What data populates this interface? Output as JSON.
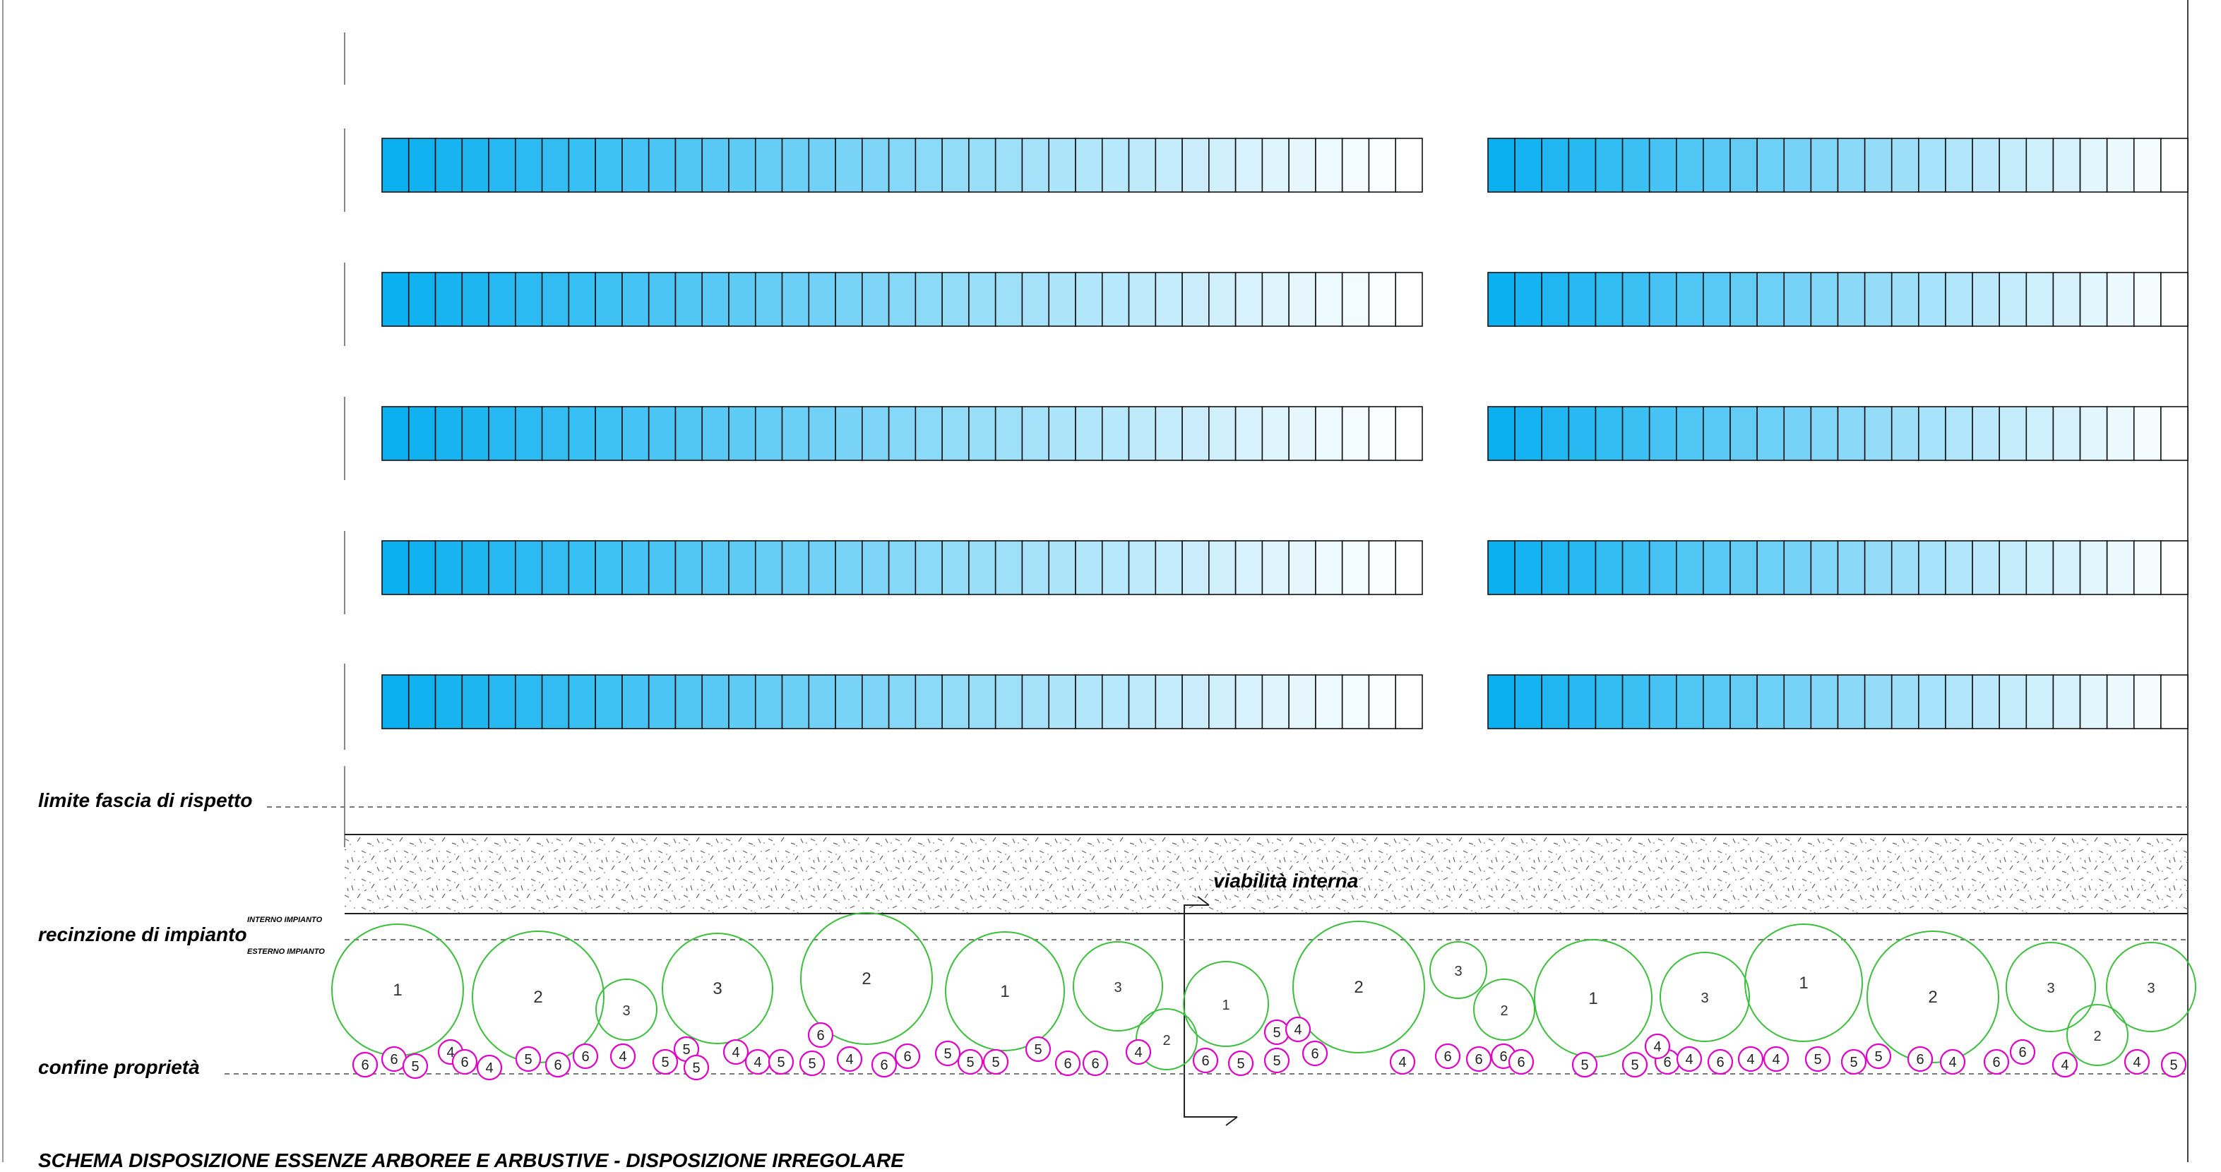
{
  "labels": {
    "limite_fascia": "limite fascia di rispetto",
    "recinzione": "recinzione di impianto",
    "interno": "INTERNO IMPIANTO",
    "esterno": "ESTERNO IMPIANTO",
    "confine": "confine proprietà",
    "viabilita": "viabilità interna",
    "title": "SCHEMA DISPOSIZIONE ESSENZE ARBOREE E ARBUSTIVE - DISPOSIZIONE IRREGOLARE"
  },
  "colors": {
    "panel_start": "#0bb0f0",
    "panel_end": "#ffffff",
    "tree_stroke": "#3cbf3c",
    "shrub_stroke": "#e000c8",
    "line": "#000000",
    "dashed": "#777777"
  },
  "trees": [
    {
      "label": "1"
    },
    {
      "label": "2"
    },
    {
      "label": "3"
    },
    {
      "label": "3"
    },
    {
      "label": "2"
    },
    {
      "label": "1"
    },
    {
      "label": "3"
    },
    {
      "label": "2"
    },
    {
      "label": "1"
    },
    {
      "label": "2"
    },
    {
      "label": "3"
    },
    {
      "label": "2"
    },
    {
      "label": "1"
    },
    {
      "label": "3"
    },
    {
      "label": "1"
    },
    {
      "label": "2"
    },
    {
      "label": "3"
    },
    {
      "label": "2"
    },
    {
      "label": "3"
    }
  ],
  "shrubs": [
    "6",
    "6",
    "5",
    "4",
    "6",
    "4",
    "5",
    "6",
    "6",
    "4",
    "5",
    "5",
    "5",
    "4",
    "4",
    "5",
    "5",
    "6",
    "4",
    "6",
    "6",
    "5",
    "5",
    "5",
    "5",
    "6",
    "6",
    "4",
    "6",
    "5",
    "5",
    "5",
    "4",
    "6",
    "4",
    "6",
    "6",
    "6",
    "6",
    "5",
    "5",
    "6",
    "4",
    "4",
    "6",
    "4",
    "4",
    "5",
    "5",
    "5",
    "6",
    "4",
    "6",
    "6",
    "4",
    "4",
    "5"
  ]
}
